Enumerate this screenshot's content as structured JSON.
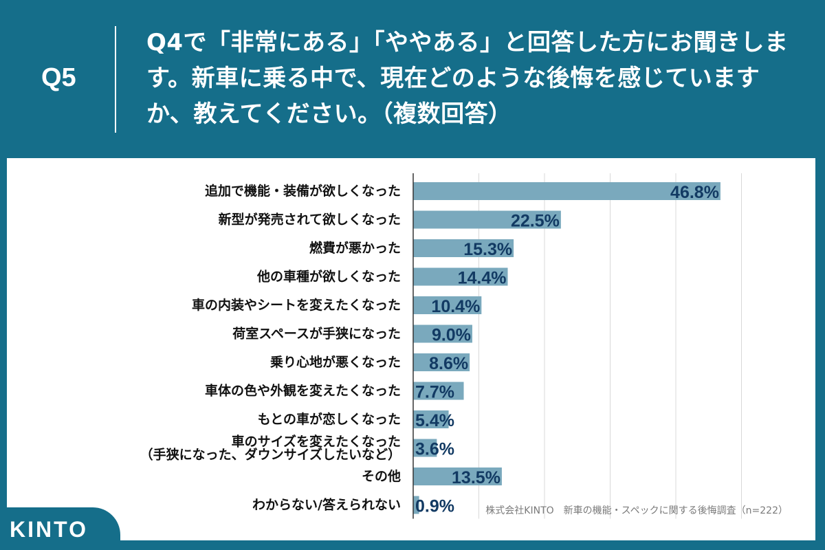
{
  "header": {
    "q_label": "Q5",
    "question": "Q4で「非常にある」「ややある」と回答した方にお聞きします。新車に乗る中で、現在どのような後悔を感じていますか、教えてください。（複数回答）"
  },
  "source": "株式会社KINTO　新車の機能・スペックに関する後悔調査（n=222）",
  "logo": "KINTO",
  "colors": {
    "background": "#156e8a",
    "bar": "#7aa9bd",
    "value_text": "#123a63"
  },
  "chart_data": {
    "type": "bar",
    "orientation": "horizontal",
    "categories": [
      "追加で機能・装備が欲しくなった",
      "新型が発売されて欲しくなった",
      "燃費が悪かった",
      "他の車種が欲しくなった",
      "車の内装やシートを変えたくなった",
      "荷室スペースが手狭になった",
      "乗り心地が悪くなった",
      "車体の色や外観を変えたくなった",
      "もとの車が恋しくなった",
      "車のサイズを変えたくなった\n（手狭になった、ダウンサイズしたいなど）",
      "その他",
      "わからない/答えられない"
    ],
    "values": [
      46.8,
      22.5,
      15.3,
      14.4,
      10.4,
      9.0,
      8.6,
      7.7,
      5.4,
      3.6,
      13.5,
      0.9
    ],
    "value_labels": [
      "46.8%",
      "22.5%",
      "15.3%",
      "14.4%",
      "10.4%",
      "9.0%",
      "8.6%",
      "7.7%",
      "5.4%",
      "3.6%",
      "13.5%",
      "0.9%"
    ],
    "xlim": [
      0,
      50
    ],
    "grid": true
  }
}
